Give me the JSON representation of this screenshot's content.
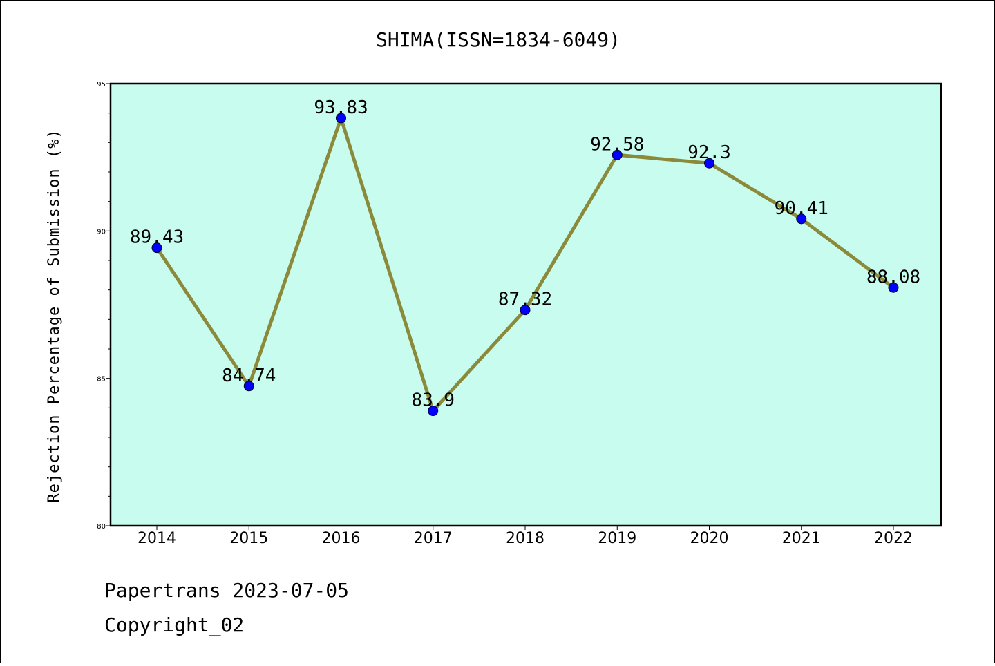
{
  "chart_data": {
    "type": "line",
    "title": "SHIMA(ISSN=1834-6049)",
    "ylabel": "Rejection Percentage of Submission (%)",
    "xlabel": "",
    "categories": [
      "2014",
      "2015",
      "2016",
      "2017",
      "2018",
      "2019",
      "2020",
      "2021",
      "2022"
    ],
    "series": [
      {
        "values": [
          89.43,
          84.74,
          93.83,
          83.9,
          87.32,
          92.58,
          92.3,
          90.41,
          88.08
        ],
        "data_labels": [
          "89.43",
          "84.74",
          "93.83",
          "83.9",
          "87.32",
          "92.58",
          "92.3",
          "90.41",
          "88.08"
        ]
      }
    ],
    "ylim": [
      80,
      95
    ],
    "yticks": [
      "80",
      "85",
      "90",
      "95"
    ],
    "grid": false,
    "colors": {
      "plot_background": "#c8fcee",
      "line": "#8a8a3a",
      "marker": "#0000ff"
    }
  },
  "footer": {
    "line1": "Papertrans 2023-07-05",
    "line2": "Copyright_02"
  }
}
